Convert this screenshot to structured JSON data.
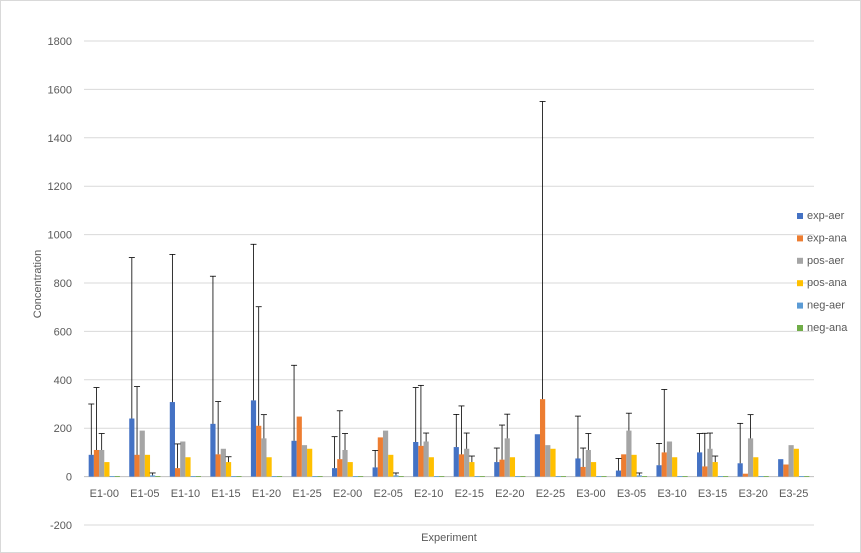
{
  "chart_data": {
    "type": "bar",
    "xlabel": "Experiment",
    "ylabel": "Concentration",
    "ylim": [
      -200,
      1800
    ],
    "yticks": [
      -200,
      0,
      200,
      400,
      600,
      800,
      1000,
      1200,
      1400,
      1600,
      1800
    ],
    "grid": true,
    "legend_position": "right",
    "categories": [
      "E1-00",
      "E1-05",
      "E1-10",
      "E1-15",
      "E1-20",
      "E1-25",
      "E2-00",
      "E2-05",
      "E2-10",
      "E2-15",
      "E2-20",
      "E2-25",
      "E3-00",
      "E3-05",
      "E3-10",
      "E3-15",
      "E3-20",
      "E3-25"
    ],
    "series": [
      {
        "name": "exp-aer",
        "color": "#4472c4",
        "values": [
          90,
          240,
          308,
          218,
          315,
          148,
          35,
          38,
          143,
          122,
          60,
          175,
          75,
          25,
          47,
          100,
          55,
          72
        ],
        "error": [
          210,
          665,
          610,
          610,
          645,
          312,
          130,
          70,
          225,
          135,
          58,
          0,
          175,
          50,
          90,
          78,
          165,
          0
        ]
      },
      {
        "name": "exp-ana",
        "color": "#ed7d31",
        "values": [
          110,
          90,
          35,
          92,
          210,
          248,
          72,
          162,
          127,
          92,
          70,
          320,
          40,
          92,
          100,
          42,
          12,
          50
        ],
        "error": [
          258,
          282,
          100,
          218,
          492,
          0,
          200,
          0,
          250,
          200,
          143,
          1230,
          78,
          0,
          260,
          137,
          0,
          0
        ]
      },
      {
        "name": "pos-aer",
        "color": "#a5a5a5",
        "values": [
          110,
          190,
          145,
          115,
          158,
          130,
          110,
          190,
          145,
          115,
          158,
          130,
          110,
          190,
          145,
          115,
          158,
          130
        ],
        "error": [
          68,
          0,
          0,
          0,
          98,
          0,
          68,
          0,
          35,
          65,
          100,
          0,
          68,
          72,
          0,
          65,
          98,
          0
        ]
      },
      {
        "name": "pos-ana",
        "color": "#ffc000",
        "values": [
          60,
          90,
          80,
          60,
          80,
          115,
          60,
          90,
          80,
          60,
          80,
          115,
          60,
          90,
          80,
          60,
          80,
          115
        ],
        "error": [
          0,
          0,
          0,
          22,
          0,
          0,
          0,
          0,
          0,
          25,
          0,
          0,
          0,
          0,
          0,
          25,
          0,
          0
        ]
      },
      {
        "name": "neg-aer",
        "color": "#5b9bd5",
        "values": [
          2,
          5,
          2,
          2,
          2,
          2,
          2,
          5,
          2,
          2,
          2,
          2,
          2,
          5,
          2,
          2,
          2,
          2
        ],
        "error": [
          0,
          10,
          0,
          0,
          0,
          0,
          0,
          10,
          0,
          0,
          0,
          0,
          0,
          10,
          0,
          0,
          0,
          0
        ]
      },
      {
        "name": "neg-ana",
        "color": "#70ad47",
        "values": [
          2,
          2,
          2,
          2,
          2,
          2,
          2,
          2,
          2,
          2,
          2,
          2,
          2,
          2,
          2,
          2,
          2,
          2
        ],
        "error": [
          0,
          0,
          0,
          0,
          0,
          0,
          0,
          0,
          0,
          0,
          0,
          0,
          0,
          0,
          0,
          0,
          0,
          0
        ]
      }
    ]
  }
}
